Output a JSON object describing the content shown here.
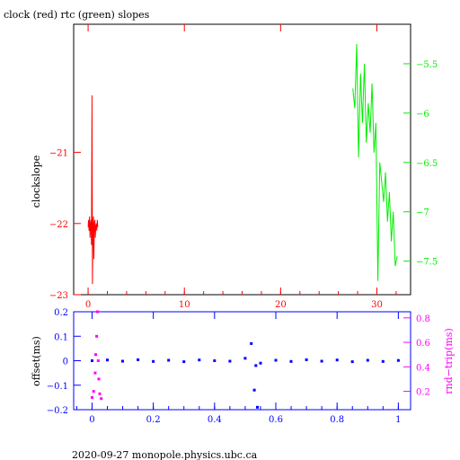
{
  "title": "clock (red) rtc (green) slopes",
  "footer": "2020-09-27  monopole.physics.ubc.ca",
  "colors": {
    "red": "#ff0000",
    "green": "#00ee00",
    "blue": "#0000ff",
    "magenta": "#ff00ff",
    "black": "#000000"
  },
  "chart_data": [
    {
      "type": "line",
      "title": "clock (red) rtc (green) slopes",
      "xlabel": "",
      "ylabel": "clockslope",
      "xlim": [
        -1.5,
        33.5
      ],
      "ylim": [
        -23.0,
        -19.2
      ],
      "y2label": "",
      "y2lim": [
        -7.84,
        -5.1
      ],
      "xticks": [
        {
          "v": 0,
          "label": "0"
        },
        {
          "v": 10,
          "label": "10"
        },
        {
          "v": 20,
          "label": "20"
        },
        {
          "v": 30,
          "label": "30"
        }
      ],
      "yticks": [
        {
          "v": -21,
          "label": "−21"
        },
        {
          "v": -22,
          "label": "−22"
        },
        {
          "v": -23,
          "label": "−23"
        }
      ],
      "y2ticks": [
        {
          "v": -5.5,
          "label": "−5.5"
        },
        {
          "v": -6,
          "label": "−6"
        },
        {
          "v": -6.5,
          "label": "−6.5"
        },
        {
          "v": -7,
          "label": "−7"
        },
        {
          "v": -7.5,
          "label": "−7.5"
        }
      ],
      "series": [
        {
          "color": "red",
          "axis": "y",
          "x": [
            0.0,
            0.05,
            0.1,
            0.15,
            0.2,
            0.25,
            0.3,
            0.35,
            0.4,
            0.45,
            0.5,
            0.55,
            0.6,
            0.65,
            0.7,
            0.75,
            0.8,
            0.85,
            0.9,
            0.95,
            1.0
          ],
          "y": [
            -22.05,
            -21.95,
            -22.1,
            -21.9,
            -22.2,
            -22.0,
            -21.95,
            -22.3,
            -20.2,
            -22.85,
            -22.05,
            -21.9,
            -22.5,
            -22.0,
            -21.95,
            -22.2,
            -22.05,
            -22.0,
            -22.1,
            -21.95,
            -22.05
          ]
        },
        {
          "color": "green",
          "axis": "y2",
          "x": [
            27.5,
            27.7,
            27.9,
            28.1,
            28.3,
            28.5,
            28.7,
            28.9,
            29.1,
            29.3,
            29.5,
            29.7,
            29.9,
            30.1,
            30.3,
            30.5,
            30.7,
            30.9,
            31.1,
            31.3,
            31.5,
            31.7,
            31.9,
            32.1
          ],
          "y": [
            -5.75,
            -5.95,
            -5.3,
            -6.45,
            -5.6,
            -6.1,
            -5.5,
            -6.3,
            -5.9,
            -6.2,
            -5.7,
            -6.4,
            -6.1,
            -7.7,
            -6.5,
            -6.7,
            -6.9,
            -6.6,
            -7.1,
            -6.8,
            -7.3,
            -7.0,
            -7.55,
            -7.45
          ]
        }
      ]
    },
    {
      "type": "scatter",
      "xlabel": "",
      "ylabel": "offset(ms)",
      "y2label": "rnd−trip(ms)",
      "xlim": [
        -0.06,
        1.04
      ],
      "ylim": [
        -0.2,
        0.2
      ],
      "y2lim": [
        0.05,
        0.85
      ],
      "xticks": [
        {
          "v": 0,
          "label": "0"
        },
        {
          "v": 0.2,
          "label": "0.2"
        },
        {
          "v": 0.4,
          "label": "0.4"
        },
        {
          "v": 0.6,
          "label": "0.6"
        },
        {
          "v": 0.8,
          "label": "0.8"
        },
        {
          "v": 1,
          "label": "1"
        }
      ],
      "yticks": [
        {
          "v": 0.2,
          "label": "0.2"
        },
        {
          "v": 0.1,
          "label": "0.1"
        },
        {
          "v": 0,
          "label": "0"
        },
        {
          "v": -0.1,
          "label": "−0.1"
        },
        {
          "v": -0.2,
          "label": "−0.2"
        }
      ],
      "y2ticks": [
        {
          "v": 0.8,
          "label": "0.8"
        },
        {
          "v": 0.6,
          "label": "0.6"
        },
        {
          "v": 0.4,
          "label": "0.4"
        },
        {
          "v": 0.2,
          "label": "0.2"
        }
      ],
      "series": [
        {
          "color": "blue",
          "axis": "y",
          "x": [
            0.0,
            0.05,
            0.1,
            0.15,
            0.2,
            0.25,
            0.3,
            0.35,
            0.4,
            0.45,
            0.5,
            0.52,
            0.53,
            0.535,
            0.54,
            0.55,
            0.6,
            0.65,
            0.7,
            0.75,
            0.8,
            0.85,
            0.9,
            0.95,
            1.0
          ],
          "y": [
            0.0,
            0.003,
            -0.002,
            0.004,
            -0.003,
            0.002,
            -0.004,
            0.003,
            0.0,
            -0.002,
            0.01,
            0.07,
            -0.12,
            -0.02,
            -0.19,
            -0.01,
            0.002,
            -0.003,
            0.004,
            -0.002,
            0.003,
            -0.004,
            0.002,
            -0.003,
            0.001
          ]
        },
        {
          "color": "magenta",
          "axis": "y2",
          "x": [
            0.0,
            0.005,
            0.01,
            0.012,
            0.015,
            0.018,
            0.02,
            0.022,
            0.025,
            0.03
          ],
          "y": [
            0.15,
            0.2,
            0.35,
            0.5,
            0.65,
            0.85,
            0.45,
            0.3,
            0.18,
            0.14
          ]
        }
      ]
    }
  ]
}
